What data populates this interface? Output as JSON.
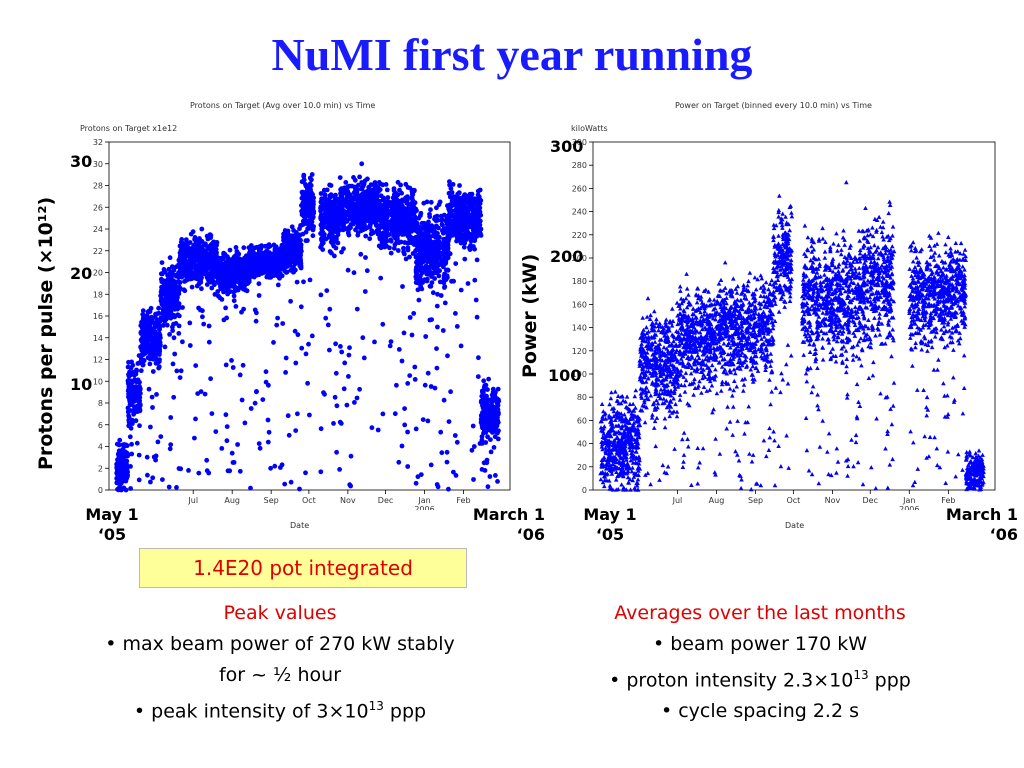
{
  "title": "NuMI first year running",
  "colors": {
    "title": "#1a1aff",
    "points": "#0000ff",
    "accent_red": "#e00000",
    "highlight_box": "#ffff99"
  },
  "left_chart": {
    "plot_title": "Protons on Target (Avg over 10.0 min) vs Time",
    "units_label": "Protons on Target x1e12",
    "big_ylabel": "Protons per pulse (×10¹²)",
    "big_ticks": [
      "30",
      "20",
      "10"
    ],
    "date_axis_label": "Date",
    "start_label": "May 1\n‘05",
    "end_label": "March 1\n‘06"
  },
  "right_chart": {
    "plot_title": "Power on Target (binned every 10.0 min) vs Time",
    "units_label": "kiloWatts",
    "big_ylabel": "Power (kW)",
    "big_ticks": [
      "300",
      "200",
      "100"
    ],
    "date_axis_label": "Date",
    "start_label": "May 1\n‘05",
    "end_label": "March 1\n‘06"
  },
  "pot_integrated": "1.4E20 pot integrated",
  "peak": {
    "heading": "Peak values",
    "line1": "• max beam power of 270 kW stably",
    "line2": "for ~ ½ hour",
    "line3_pre": "• peak intensity of 3×10",
    "line3_sup": "13",
    "line3_post": " ppp"
  },
  "avg": {
    "heading": "Averages over the last months",
    "line1": "• beam power 170 kW",
    "line2_pre": "• proton intensity 2.3×10",
    "line2_sup": "13",
    "line2_post": " ppp",
    "line3": "• cycle spacing 2.2 s"
  },
  "chart_data": [
    {
      "type": "scatter",
      "title": "Protons on Target (Avg over 10.0 min) vs Time",
      "ylabel": "Protons on Target x1e12",
      "xlabel": "Date",
      "ylim": [
        0,
        32
      ],
      "yticks": [
        0,
        2,
        4,
        6,
        8,
        10,
        12,
        14,
        16,
        18,
        20,
        22,
        24,
        26,
        28,
        30,
        32
      ],
      "xtick_labels": [
        "Jul",
        "Aug",
        "Sep",
        "Oct",
        "Nov",
        "Dec",
        "Jan\n2006",
        "Feb"
      ],
      "xtick_dates": [
        "2005-07-01",
        "2005-08-01",
        "2005-09-01",
        "2005-10-01",
        "2005-11-01",
        "2005-12-01",
        "2006-01-01",
        "2006-02-01"
      ],
      "xlim": [
        "2005-04-25",
        "2006-03-10"
      ],
      "marker": "circle",
      "color": "#0000ff",
      "grid": false,
      "bands": [
        {
          "from": "2005-05-01",
          "to": "2005-05-10",
          "center": 2,
          "spread": 2.5
        },
        {
          "from": "2005-05-10",
          "to": "2005-05-20",
          "center": 9,
          "spread": 3
        },
        {
          "from": "2005-05-20",
          "to": "2005-06-05",
          "center": 14,
          "spread": 3
        },
        {
          "from": "2005-06-05",
          "to": "2005-06-20",
          "center": 18,
          "spread": 3
        },
        {
          "from": "2005-06-20",
          "to": "2005-07-20",
          "center": 21,
          "spread": 2.5
        },
        {
          "from": "2005-07-20",
          "to": "2005-08-15",
          "center": 20,
          "spread": 2
        },
        {
          "from": "2005-08-15",
          "to": "2005-09-10",
          "center": 21,
          "spread": 1.5
        },
        {
          "from": "2005-09-10",
          "to": "2005-09-25",
          "center": 22,
          "spread": 2
        },
        {
          "from": "2005-09-25",
          "to": "2005-10-05",
          "center": 26,
          "spread": 3
        },
        {
          "from": "2005-10-10",
          "to": "2005-10-25",
          "center": 25,
          "spread": 3
        },
        {
          "from": "2005-10-25",
          "to": "2005-11-25",
          "center": 26,
          "spread": 2.5
        },
        {
          "from": "2005-11-25",
          "to": "2005-12-25",
          "center": 25,
          "spread": 3
        },
        {
          "from": "2005-12-25",
          "to": "2006-01-20",
          "center": 22,
          "spread": 4
        },
        {
          "from": "2006-01-20",
          "to": "2006-02-15",
          "center": 25,
          "spread": 3
        },
        {
          "from": "2006-02-15",
          "to": "2006-03-01",
          "center": 7,
          "spread": 3
        }
      ],
      "scatter_range": [
        0,
        28
      ],
      "peak": 30
    },
    {
      "type": "scatter",
      "title": "Power on Target (binned every 10.0 min) vs Time",
      "ylabel": "kiloWatts",
      "xlabel": "Date",
      "ylim": [
        0,
        300
      ],
      "yticks": [
        0,
        20,
        40,
        60,
        80,
        100,
        120,
        140,
        160,
        180,
        200,
        220,
        240,
        260,
        280,
        300
      ],
      "xtick_labels": [
        "Jul",
        "Aug",
        "Sep",
        "Oct",
        "Nov",
        "Dec",
        "Jan\n2006",
        "Feb"
      ],
      "xtick_dates": [
        "2005-07-01",
        "2005-08-01",
        "2005-09-01",
        "2005-10-01",
        "2005-11-01",
        "2005-12-01",
        "2006-01-01",
        "2006-02-01"
      ],
      "xlim": [
        "2005-04-25",
        "2006-03-10"
      ],
      "marker": "triangle",
      "color": "#0000ff",
      "grid": false,
      "bands": [
        {
          "from": "2005-05-01",
          "to": "2005-06-01",
          "center": 40,
          "spread": 40
        },
        {
          "from": "2005-06-01",
          "to": "2005-07-01",
          "center": 110,
          "spread": 45
        },
        {
          "from": "2005-07-01",
          "to": "2005-08-01",
          "center": 130,
          "spread": 45
        },
        {
          "from": "2005-08-01",
          "to": "2005-09-15",
          "center": 140,
          "spread": 45
        },
        {
          "from": "2005-09-15",
          "to": "2005-09-30",
          "center": 200,
          "spread": 45
        },
        {
          "from": "2005-10-08",
          "to": "2005-11-25",
          "center": 165,
          "spread": 55
        },
        {
          "from": "2005-11-25",
          "to": "2005-12-20",
          "center": 180,
          "spread": 55
        },
        {
          "from": "2006-01-01",
          "to": "2006-02-15",
          "center": 170,
          "spread": 45
        },
        {
          "from": "2006-02-15",
          "to": "2006-03-01",
          "center": 15,
          "spread": 15
        }
      ],
      "scatter_range": [
        0,
        240
      ],
      "peak": 265
    }
  ]
}
